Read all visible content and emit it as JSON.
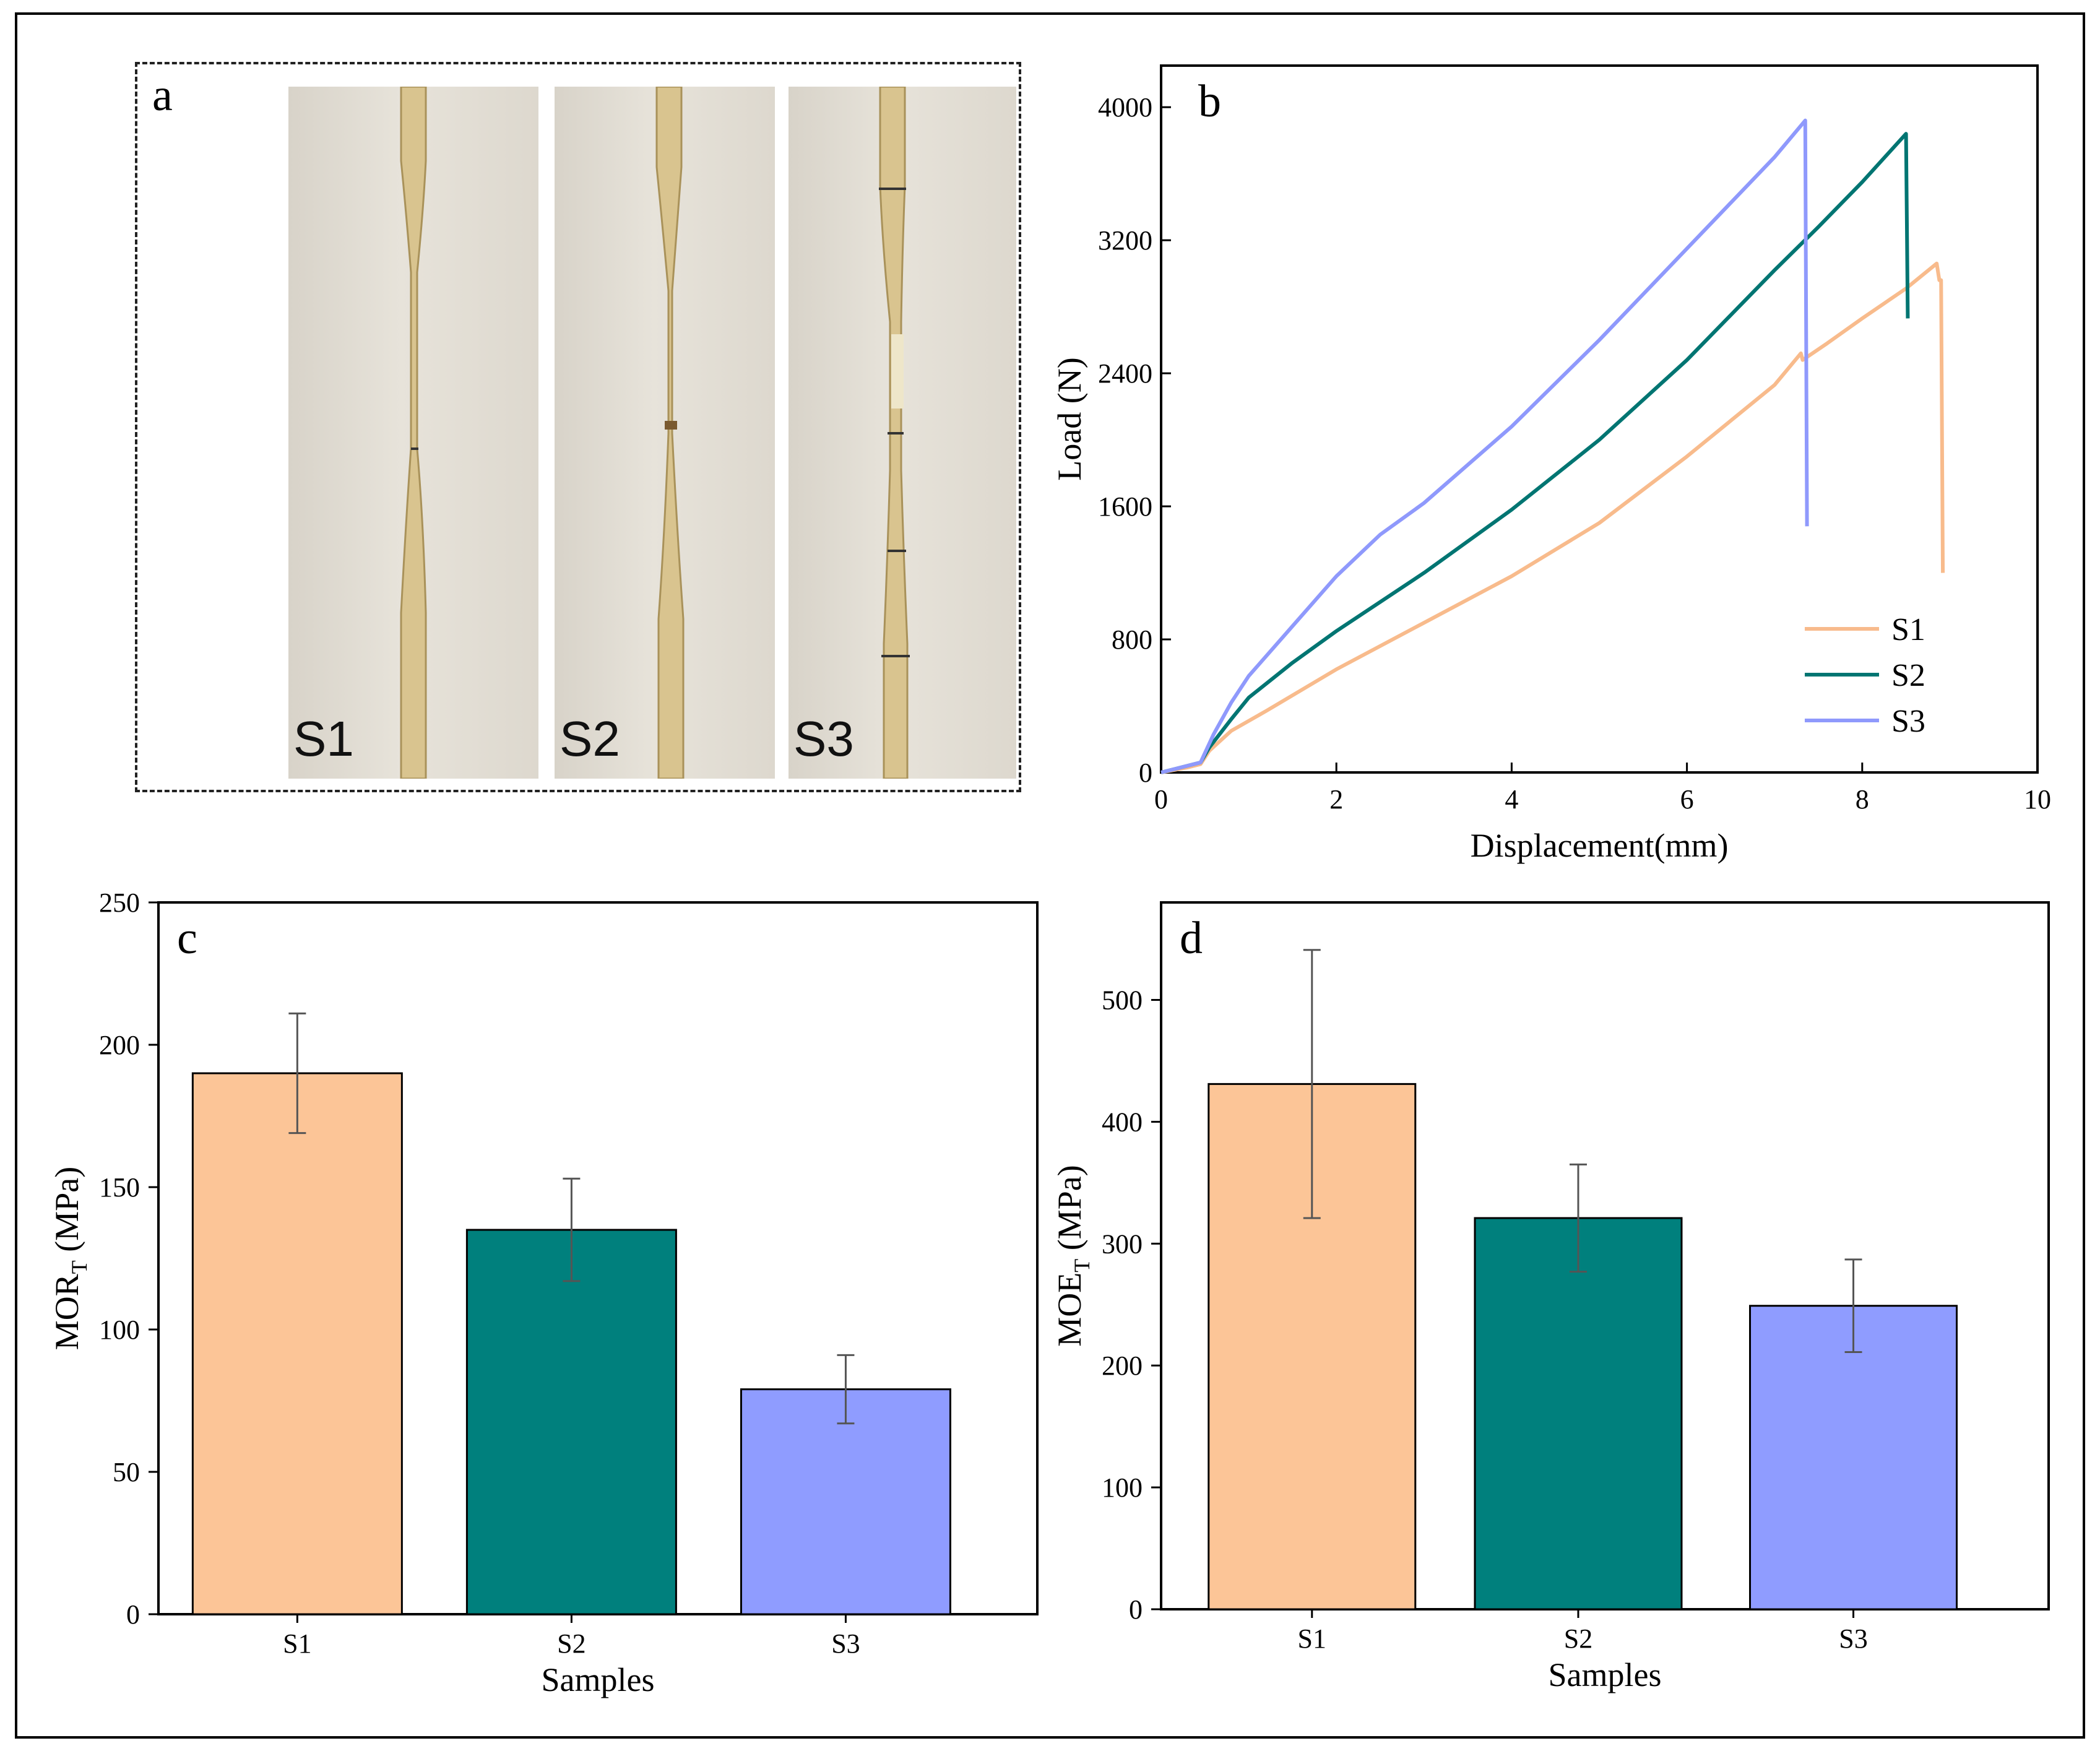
{
  "panel_a": {
    "letter": "a",
    "photos": [
      {
        "label": "S1"
      },
      {
        "label": "S2"
      },
      {
        "label": "S3"
      }
    ],
    "stick_color": "#d9c48f"
  },
  "chart_data": [
    {
      "panel": "b",
      "type": "line",
      "xlabel": "Displacement(mm)",
      "ylabel": "Load (N)",
      "xlim": [
        0,
        10
      ],
      "ylim": [
        0,
        4250
      ],
      "xticks": [
        0,
        2,
        4,
        6,
        8,
        10
      ],
      "yticks": [
        0,
        800,
        1600,
        2400,
        3200,
        4000
      ],
      "legend": "lower-right",
      "series": [
        {
          "name": "S1",
          "color": "#f8bb8c",
          "x": [
            0,
            0.3,
            0.45,
            0.55,
            0.8,
            1.2,
            2,
            3,
            4,
            5,
            6,
            7,
            7.3,
            7.32,
            7.6,
            8,
            8.5,
            8.85,
            8.88,
            8.9,
            8.92
          ],
          "y": [
            0,
            30,
            50,
            130,
            250,
            370,
            620,
            900,
            1180,
            1500,
            1900,
            2330,
            2520,
            2480,
            2580,
            2730,
            2910,
            3060,
            2960,
            2960,
            1200
          ]
        },
        {
          "name": "S2",
          "color": "#007572",
          "x": [
            0,
            0.3,
            0.45,
            0.55,
            0.8,
            1.0,
            1.5,
            2,
            3,
            4,
            5,
            6,
            7,
            7.5,
            8,
            8.5,
            8.52
          ],
          "y": [
            0,
            40,
            60,
            150,
            320,
            450,
            660,
            850,
            1200,
            1580,
            2000,
            2480,
            3020,
            3280,
            3550,
            3840,
            2730
          ]
        },
        {
          "name": "S3",
          "color": "#8f99fc",
          "x": [
            0,
            0.3,
            0.45,
            0.6,
            0.8,
            1.0,
            1.5,
            2,
            2.5,
            3,
            4,
            5,
            6,
            7,
            7.35,
            7.37
          ],
          "y": [
            0,
            40,
            60,
            230,
            420,
            580,
            880,
            1180,
            1430,
            1620,
            2080,
            2600,
            3150,
            3700,
            3920,
            1480
          ]
        }
      ]
    },
    {
      "panel": "c",
      "type": "bar",
      "categories": [
        "S1",
        "S2",
        "S3"
      ],
      "values": [
        190,
        135,
        79
      ],
      "errors": [
        21,
        18,
        12
      ],
      "colors": [
        "#fcc597",
        "#00807d",
        "#8f9cff"
      ],
      "xlabel": "Samples",
      "ylabel": "MOR",
      "ylabel_sub": "T",
      "ylabel_unit": " (MPa)",
      "ylim": [
        0,
        250
      ],
      "yticks": [
        0,
        50,
        100,
        150,
        200,
        250
      ]
    },
    {
      "panel": "d",
      "type": "bar",
      "categories": [
        "S1",
        "S2",
        "S3"
      ],
      "values": [
        431,
        321,
        249
      ],
      "errors": [
        110,
        44,
        38
      ],
      "colors": [
        "#fcc597",
        "#00807d",
        "#8f9cff"
      ],
      "xlabel": "Samples",
      "ylabel": "MOE",
      "ylabel_sub": "T",
      "ylabel_unit": " (MPa)",
      "ylim": [
        0,
        580
      ],
      "yticks": [
        0,
        100,
        200,
        300,
        400,
        500
      ]
    }
  ]
}
